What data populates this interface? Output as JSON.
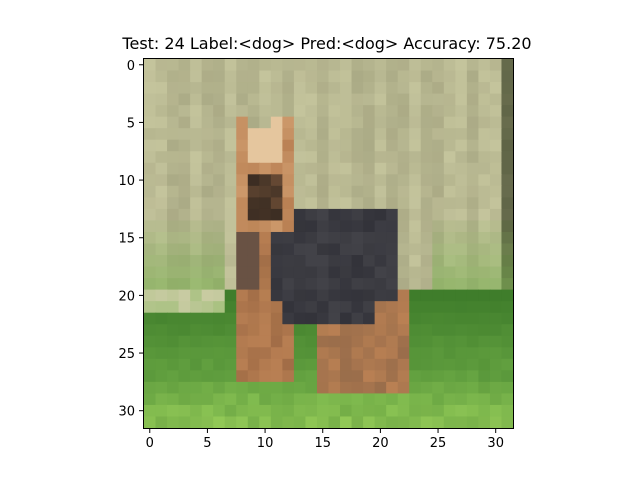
{
  "figure": {
    "title": "Test: 24  Label:<dog>  Pred:<dog>  Accuracy: 75.20",
    "image_description": "dog",
    "x_ticks": [
      "0",
      "5",
      "10",
      "15",
      "20",
      "25",
      "30"
    ],
    "y_ticks": [
      "0",
      "5",
      "10",
      "15",
      "20",
      "25",
      "30"
    ],
    "grid_size": 32,
    "colors": {
      "fence": "#c4c49c",
      "fence_dark": "#8e8d6c",
      "wood_post": "#50573a",
      "grass": "#74b24a",
      "grass_light": "#98cd59",
      "grass_dark": "#3f7d2b",
      "dog_tan": "#b98053",
      "dog_black": "#33333a",
      "dog_face": "#d9a97a"
    }
  }
}
